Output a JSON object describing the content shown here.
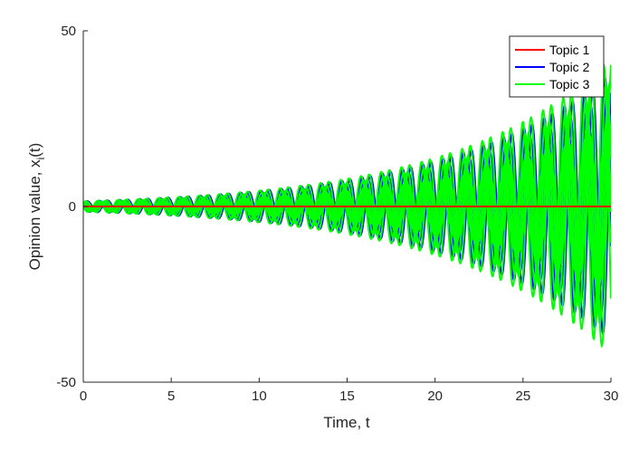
{
  "chart_data": {
    "type": "line",
    "title": "",
    "xlabel": "Time, t",
    "ylabel_main": "Opinion value, x",
    "ylabel_sub": "i",
    "ylabel_tail": "(t)",
    "xlim": [
      0,
      30
    ],
    "ylim": [
      -50,
      50
    ],
    "xticks": [
      "0",
      "5",
      "10",
      "15",
      "20",
      "25",
      "30"
    ],
    "yticks": [
      "-50",
      "0",
      "50"
    ],
    "grid": false,
    "legend_position": "top-right",
    "series": [
      {
        "name": "Topic 1",
        "color": "#ff0000",
        "description": "flat at zero",
        "amplitudes": [
          0
        ],
        "envelope_start": 0,
        "envelope_end": 0
      },
      {
        "name": "Topic 2",
        "color": "#0000ff",
        "amplitudes": [
          1.0,
          0.85,
          0.7,
          0.55,
          0.4,
          -0.4,
          -0.55,
          -0.7,
          -0.85,
          -1.0
        ],
        "envelope_start": 1.5,
        "envelope_end": 38
      },
      {
        "name": "Topic 3",
        "color": "#00ff00",
        "amplitudes": [
          1.0,
          0.85,
          0.7,
          0.55,
          0.4,
          -0.4,
          -0.55,
          -0.7,
          -0.85,
          -1.0
        ],
        "envelope_start": 1.5,
        "envelope_end": 42
      }
    ],
    "oscillation_period": 1.15
  }
}
